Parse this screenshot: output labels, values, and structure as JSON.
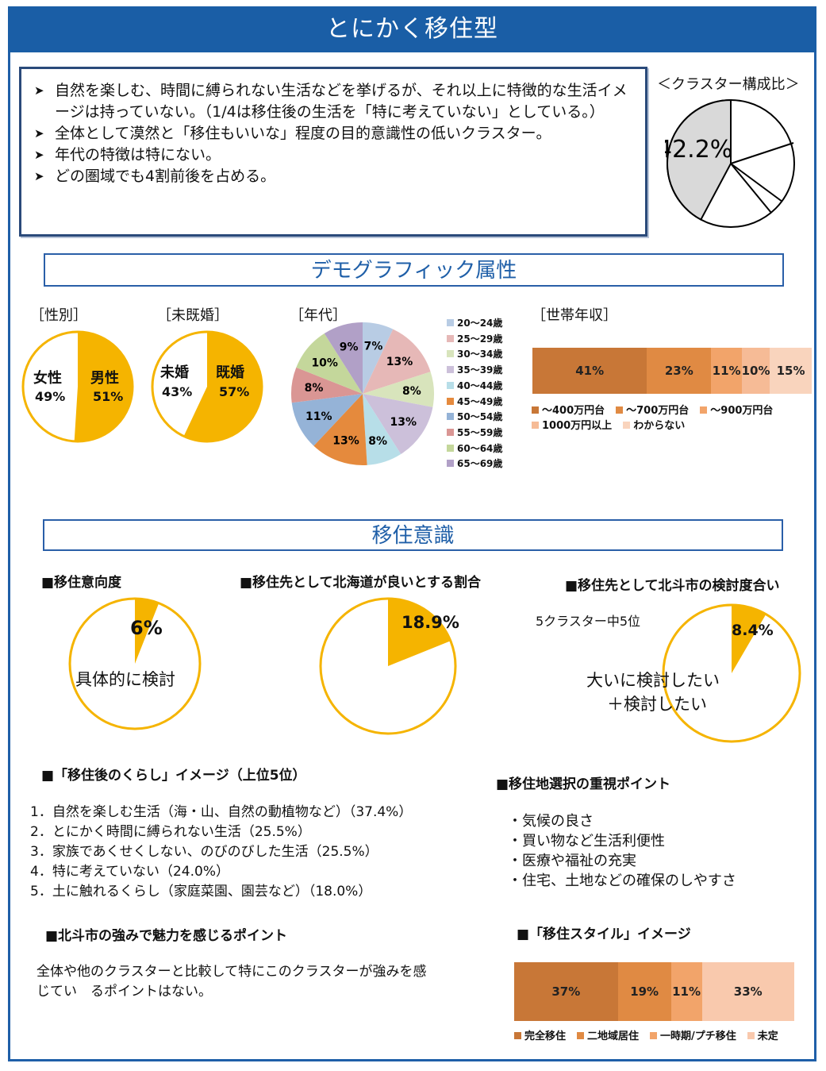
{
  "title": "とにかく移住型",
  "summary_items": [
    "自然を楽しむ、時間に縛られない生活などを挙げるが、それ以上に特徴的な生活イメージは持っていない。（1/4は移住後の生活を「特に考えていない」としている。）",
    "全体として漠然と「移住もいいな」程度の目的意識性の低いクラスター。",
    "年代の特徴は特にない。",
    "どの圏域でも4割前後を占める。"
  ],
  "cluster": {
    "label": "＜クラスター構成比＞",
    "value_text": "42.2%",
    "value": 42.2
  },
  "demo_heading": "デモグラフィック属性",
  "gender": {
    "label": "［性別］",
    "female": "女性",
    "female_pct": "49%",
    "male": "男性",
    "male_pct": "51%",
    "male_value": 51
  },
  "marital": {
    "label": "［未既婚］",
    "single": "未婚",
    "single_pct": "43%",
    "married": "既婚",
    "married_pct": "57%",
    "married_value": 57
  },
  "age": {
    "label": "［年代］",
    "legend": [
      "20～24歳",
      "25～29歳",
      "30～34歳",
      "35～39歳",
      "40～44歳",
      "45～49歳",
      "50～54歳",
      "55～59歳",
      "60～64歳",
      "65～69歳"
    ],
    "values": [
      7,
      13,
      8,
      13,
      8,
      13,
      11,
      8,
      10,
      9
    ],
    "pct_labels": [
      "7%",
      "13%",
      "8%",
      "13%",
      "8%",
      "13%",
      "11%",
      "8%",
      "10%",
      "9%"
    ],
    "colors": [
      "#b8cce4",
      "#e6b8b7",
      "#d8e4bc",
      "#ccc0da",
      "#b7dee8",
      "#e58a3d",
      "#95b3d7",
      "#da9694",
      "#c4d79b",
      "#b1a0c7"
    ]
  },
  "income": {
    "label": "［世帯年収］",
    "values": [
      41,
      23,
      11,
      10,
      15
    ],
    "pct_labels": [
      "41%",
      "23%",
      "11%",
      "10%",
      "15%"
    ],
    "colors": [
      "#c87737",
      "#e08a43",
      "#f2a46a",
      "#f6bb96",
      "#f9d4bd"
    ],
    "legend": [
      "～400万円台",
      "～700万円台",
      "～900万円台",
      "1000万円以上",
      "わからない"
    ]
  },
  "ijuu_heading": "移住意識",
  "intent": {
    "label": "■移住意向度",
    "pct": "6%",
    "value": 6,
    "caption": "具体的に検討"
  },
  "hokkaido": {
    "label": "■移住先として北海道が良いとする割合",
    "pct": "18.9%",
    "value": 18.9
  },
  "hokuto": {
    "label": "■移住先として北斗市の検討度合い",
    "rank": "5クラスター中5位",
    "pct": "8.4%",
    "value": 8.4,
    "caption1": "大いに検討したい",
    "caption2": "＋検討したい"
  },
  "life_image": {
    "label": "■「移住後のくらし」イメージ（上位5位）",
    "items": [
      "1．自然を楽しむ生活（海・山、自然の動植物など）（37.4%）",
      "2．とにかく時間に縛られない生活（25.5%）",
      "3．家族であくせくしない、のびのびした生活（25.5%）",
      "4．特に考えていない（24.0%）",
      "5．土に触れるくらし（家庭菜園、園芸など）（18.0%）"
    ]
  },
  "points": {
    "label": "■移住地選択の重視ポイント",
    "items": [
      "・気候の良さ",
      "・買い物など生活利便性",
      "・医療や福祉の充実",
      "・住宅、土地などの確保のしやすさ"
    ]
  },
  "strength": {
    "label": "■北斗市の強みで魅力を感じるポイント",
    "text1": "全体や他のクラスターと比較して特にこのクラスターが強みを感",
    "text2": "じてい　るポイントはない。"
  },
  "style": {
    "label": "■「移住スタイル」イメージ",
    "values": [
      37,
      19,
      11,
      33
    ],
    "pct_labels": [
      "37%",
      "19%",
      "11%",
      "33%"
    ],
    "colors": [
      "#c87737",
      "#e08a43",
      "#f2a46a",
      "#f9c9ad"
    ],
    "legend": [
      "完全移住",
      "二地域居住",
      "一時期/プチ移住",
      "未定"
    ]
  },
  "chart_data": [
    {
      "type": "pie",
      "title": "＜クラスター構成比＞",
      "values": [
        42.2
      ],
      "labels": [
        "42.2%"
      ]
    },
    {
      "type": "pie",
      "title": "［性別］",
      "categories": [
        "女性",
        "男性"
      ],
      "values": [
        49,
        51
      ]
    },
    {
      "type": "pie",
      "title": "［未既婚］",
      "categories": [
        "未婚",
        "既婚"
      ],
      "values": [
        43,
        57
      ]
    },
    {
      "type": "pie",
      "title": "［年代］",
      "categories": [
        "20～24歳",
        "25～29歳",
        "30～34歳",
        "35～39歳",
        "40～44歳",
        "45～49歳",
        "50～54歳",
        "55～59歳",
        "60～64歳",
        "65～69歳"
      ],
      "values": [
        7,
        13,
        8,
        13,
        8,
        13,
        11,
        8,
        10,
        9
      ]
    },
    {
      "type": "bar",
      "title": "［世帯年収］",
      "categories": [
        "～400万円台",
        "～700万円台",
        "～900万円台",
        "1000万円以上",
        "わからない"
      ],
      "values": [
        41,
        23,
        11,
        10,
        15
      ]
    },
    {
      "type": "pie",
      "title": "■移住意向度",
      "values": [
        6
      ]
    },
    {
      "type": "pie",
      "title": "■移住先として北海道が良いとする割合",
      "values": [
        18.9
      ]
    },
    {
      "type": "pie",
      "title": "■移住先として北斗市の検討度合い",
      "values": [
        8.4
      ]
    },
    {
      "type": "bar",
      "title": "■「移住スタイル」イメージ",
      "categories": [
        "完全移住",
        "二地域居住",
        "一時期/プチ移住",
        "未定"
      ],
      "values": [
        37,
        19,
        11,
        33
      ]
    }
  ]
}
